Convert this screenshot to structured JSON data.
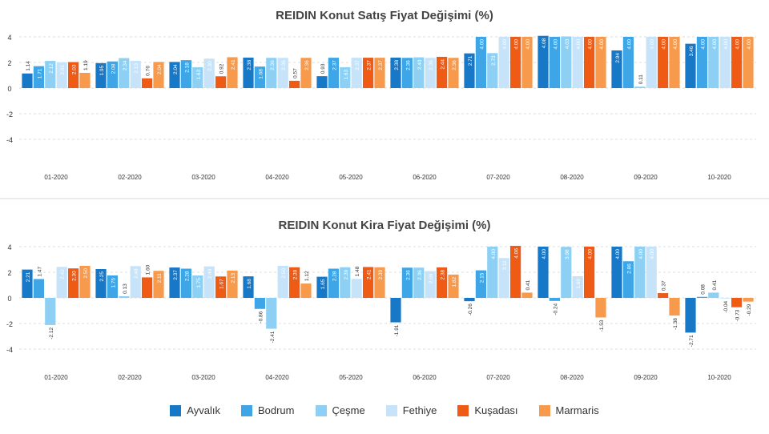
{
  "chart_data": [
    {
      "type": "bar",
      "title": "REIDIN Konut Satış Fiyat Değişimi (%)",
      "categories": [
        "01-2020",
        "02-2020",
        "03-2020",
        "04-2020",
        "05-2020",
        "06-2020",
        "07-2020",
        "08-2020",
        "09-2020",
        "10-2020"
      ],
      "yticks": [
        4,
        2,
        0,
        -2,
        -4
      ],
      "ylim": [
        -6,
        4.5
      ],
      "grid": true,
      "series": [
        {
          "name": "Ayvalık",
          "values": [
            1.14,
            1.95,
            2.04,
            2.38,
            0.93,
            2.38,
            2.71,
            4.08,
            2.94,
            3.46
          ]
        },
        {
          "name": "Bodrum",
          "values": [
            1.71,
            2.08,
            2.18,
            1.68,
            2.37,
            2.36,
            4.0,
            4.0,
            4.0,
            4.0
          ]
        },
        {
          "name": "Çeşme",
          "values": [
            2.12,
            2.34,
            1.63,
            2.36,
            1.63,
            2.4,
            2.73,
            4.03,
            0.11,
            4.0
          ]
        },
        {
          "name": "Fethiye",
          "values": [
            2.01,
            2.13,
            2.3,
            2.36,
            2.37,
            2.36,
            4.0,
            4.0,
            4.0,
            4.0
          ]
        },
        {
          "name": "Kuşadası",
          "values": [
            2.03,
            0.76,
            0.92,
            0.57,
            2.37,
            2.44,
            4.0,
            4.0,
            4.0,
            4.0
          ]
        },
        {
          "name": "Marmaris",
          "values": [
            1.19,
            2.04,
            2.41,
            2.36,
            2.37,
            2.36,
            4.0,
            4.0,
            4.0,
            4.0
          ]
        }
      ]
    },
    {
      "type": "bar",
      "title": "REIDIN Konut Kira Fiyat Değişimi (%)",
      "categories": [
        "01-2020",
        "02-2020",
        "03-2020",
        "04-2020",
        "05-2020",
        "06-2020",
        "07-2020",
        "08-2020",
        "09-2020",
        "10-2020"
      ],
      "yticks": [
        4,
        2,
        0,
        -2,
        -4
      ],
      "ylim": [
        -6,
        4.5
      ],
      "grid": true,
      "series": [
        {
          "name": "Ayvalık",
          "values": [
            2.21,
            2.25,
            2.37,
            1.68,
            1.65,
            -1.91,
            -0.26,
            4.0,
            4.0,
            -2.71
          ]
        },
        {
          "name": "Bodrum",
          "values": [
            1.47,
            1.75,
            2.28,
            -0.86,
            2.28,
            2.36,
            2.15,
            -0.24,
            2.86,
            0.08
          ]
        },
        {
          "name": "Çeşme",
          "values": [
            -2.12,
            0.13,
            1.75,
            -2.41,
            2.39,
            2.36,
            4.0,
            3.98,
            4.0,
            0.41
          ]
        },
        {
          "name": "Fethiye",
          "values": [
            2.42,
            2.48,
            2.46,
            2.5,
            1.48,
            2.09,
            3.11,
            1.69,
            4.0,
            -0.04
          ]
        },
        {
          "name": "Kuşadası",
          "values": [
            2.3,
            1.6,
            1.67,
            2.39,
            2.41,
            2.38,
            4.06,
            4.0,
            0.37,
            -0.73
          ]
        },
        {
          "name": "Marmaris",
          "values": [
            2.5,
            2.11,
            2.13,
            1.12,
            2.39,
            1.82,
            0.41,
            -1.53,
            -1.38,
            -0.29
          ]
        }
      ]
    }
  ],
  "legend": [
    {
      "name": "Ayvalık",
      "color": "#1878c8"
    },
    {
      "name": "Bodrum",
      "color": "#3ea6e6"
    },
    {
      "name": "Çeşme",
      "color": "#8ed0f3"
    },
    {
      "name": "Fethiye",
      "color": "#c6e3f9"
    },
    {
      "name": "Kuşadası",
      "color": "#ef5a14"
    },
    {
      "name": "Marmaris",
      "color": "#f79a4c"
    }
  ]
}
